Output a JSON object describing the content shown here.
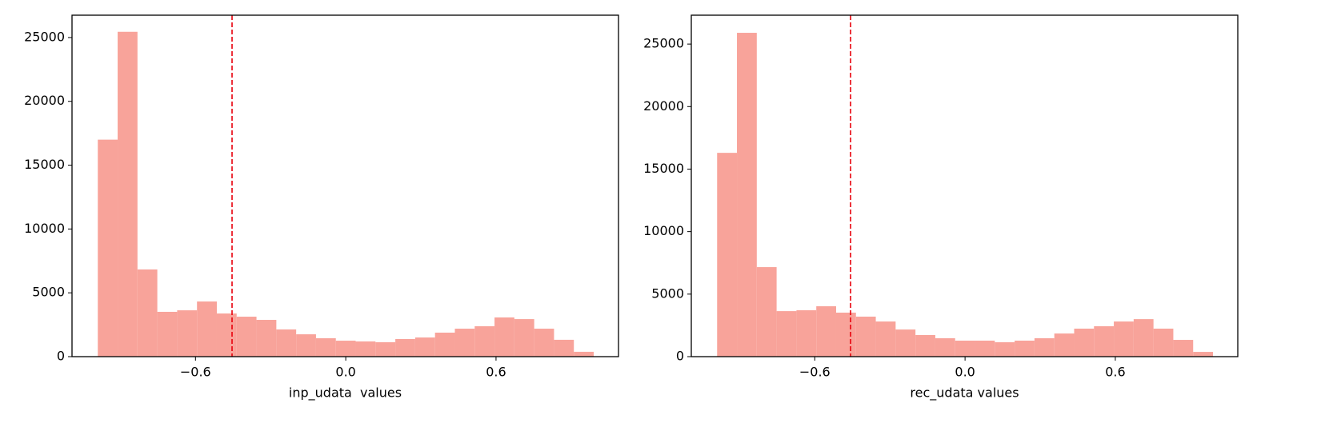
{
  "chart_data": [
    {
      "type": "histogram",
      "xlabel": "inp_udata  values",
      "color": "#f8a39a",
      "bins": [
        -0.99,
        -0.9108,
        -0.8316,
        -0.7524,
        -0.6732,
        -0.594,
        -0.5148,
        -0.4356,
        -0.3564,
        -0.2772,
        -0.198,
        -0.1188,
        -0.0396,
        0.0396,
        0.1188,
        0.198,
        0.2772,
        0.3564,
        0.4356,
        0.5148,
        0.594,
        0.6732,
        0.7524,
        0.8316,
        0.9108,
        0.99
      ],
      "values": [
        17000,
        25450,
        6830,
        3510,
        3630,
        4320,
        3380,
        3130,
        2880,
        2130,
        1750,
        1440,
        1250,
        1190,
        1130,
        1380,
        1500,
        1880,
        2190,
        2380,
        3070,
        2940,
        2190,
        1320,
        380
      ],
      "vline": -0.454,
      "vline_color": "#e8000b",
      "xlim": [
        -1.093,
        1.089
      ],
      "ylim": [
        0,
        26750
      ],
      "xticks": [
        {
          "value": -0.6,
          "label": "−0.6"
        },
        {
          "value": 0,
          "label": "0.0"
        },
        0.6
      ],
      "yticks": [
        0,
        5000,
        10000,
        15000,
        20000,
        25000
      ]
    },
    {
      "type": "histogram",
      "xlabel": "rec_udata values",
      "color": "#f8a39a",
      "bins": [
        -0.99,
        -0.9108,
        -0.8316,
        -0.7524,
        -0.6732,
        -0.594,
        -0.5148,
        -0.4356,
        -0.3564,
        -0.2772,
        -0.198,
        -0.1188,
        -0.0396,
        0.0396,
        0.1188,
        0.198,
        0.2772,
        0.3564,
        0.4356,
        0.5148,
        0.594,
        0.6732,
        0.7524,
        0.8316,
        0.9108,
        0.99
      ],
      "values": [
        16300,
        25900,
        7160,
        3640,
        3710,
        4030,
        3520,
        3200,
        2810,
        2170,
        1730,
        1470,
        1280,
        1280,
        1150,
        1280,
        1470,
        1850,
        2240,
        2430,
        2810,
        3000,
        2240,
        1340,
        380
      ],
      "vline": -0.457,
      "vline_color": "#e8000b",
      "xlim": [
        -1.093,
        1.089
      ],
      "ylim": [
        0,
        27310
      ],
      "xticks": [
        {
          "value": -0.6,
          "label": "−0.6"
        },
        {
          "value": 0,
          "label": "0.0"
        },
        0.6
      ],
      "yticks": [
        0,
        5000,
        10000,
        15000,
        20000,
        25000
      ]
    }
  ]
}
